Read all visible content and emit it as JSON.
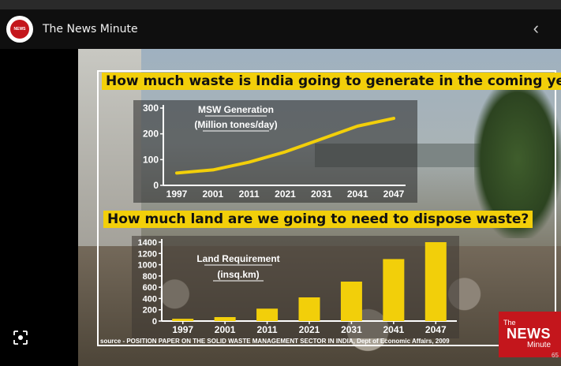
{
  "header": {
    "avatar_text": "NEWS",
    "channel_name": "The News Minute",
    "back_icon": "chevron-left-icon"
  },
  "video": {
    "question1": "How much waste is India going to generate in the coming years?",
    "question2": "How much land are we going to need to dispose waste?",
    "source": "source - POSITION PAPER ON THE SOLID WASTE MANAGEMENT SECTOR IN INDIA, Dept of Economic Affairs, 2009",
    "logo": {
      "the": "The",
      "news": "NEWS",
      "minute": "Minute"
    },
    "timecode": "65",
    "accent": "#f2cf0a",
    "brand": "#c4161c"
  },
  "chart_data": [
    {
      "type": "line",
      "title": "MSW Generation",
      "subtitle": "(Million tones/day)",
      "x": [
        1997,
        2001,
        2011,
        2021,
        2031,
        2041,
        2047
      ],
      "tick_labels": [
        "1997",
        "2001",
        "2011",
        "2021",
        "2031",
        "2041",
        "2047"
      ],
      "values": [
        48,
        60,
        90,
        130,
        180,
        230,
        260
      ],
      "ylim": [
        0,
        300
      ],
      "yticks": [
        "0",
        "100",
        "200",
        "300"
      ],
      "color": "#f2cf0a"
    },
    {
      "type": "bar",
      "title": "Land Requirement",
      "subtitle": "(insq.km)",
      "categories": [
        "1997",
        "2001",
        "2011",
        "2021",
        "2031",
        "2041",
        "2047"
      ],
      "values": [
        40,
        70,
        220,
        420,
        700,
        1100,
        1400
      ],
      "ylim": [
        0,
        1400
      ],
      "yticks": [
        "0",
        "200",
        "400",
        "600",
        "800",
        "1000",
        "1200",
        "1400"
      ],
      "color": "#f2cf0a"
    }
  ]
}
